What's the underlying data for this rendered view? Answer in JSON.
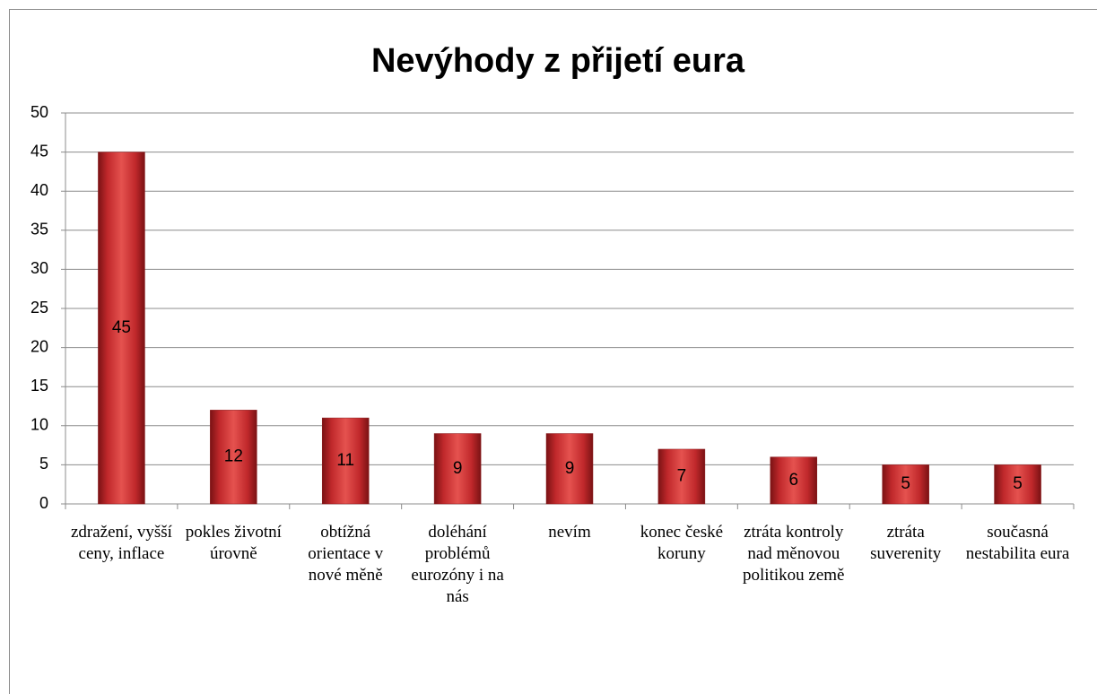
{
  "chart_data": {
    "type": "bar",
    "title": "Nevýhody z přijetí eura",
    "categories": [
      "zdražení, vyšší ceny, inflace",
      "pokles životní úrovně",
      "obtížná orientace v nové měně",
      "doléhání problémů eurozóny i na nás",
      "nevím",
      "konec české koruny",
      "ztráta kontroly nad měnovou politikou země",
      "ztráta suverenity",
      "současná nestabilita eura"
    ],
    "values": [
      45,
      12,
      11,
      9,
      9,
      7,
      6,
      5,
      5
    ],
    "color": "#c0282b",
    "ylim": [
      0,
      50
    ],
    "yticks": [
      0,
      5,
      10,
      15,
      20,
      25,
      30,
      35,
      40,
      45,
      50
    ],
    "grid": true
  }
}
